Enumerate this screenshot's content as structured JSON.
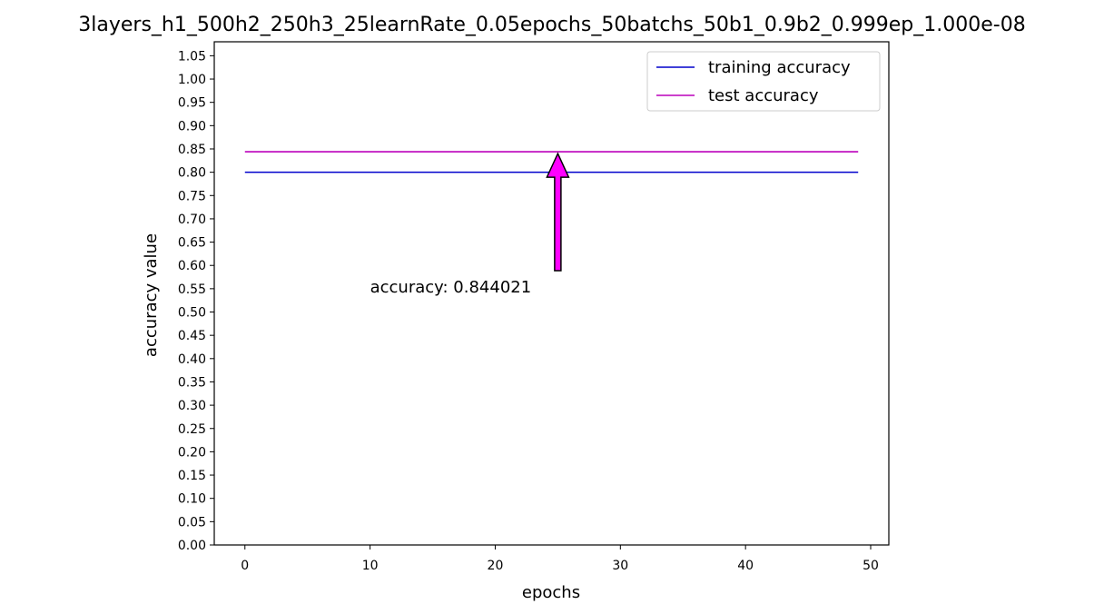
{
  "chart_data": {
    "type": "line",
    "title": "3layers_h1_500h2_250h3_25learnRate_0.05epochs_50batchs_50b1_0.9b2_0.999ep_1.000e-08",
    "xlabel": "epochs",
    "ylabel": "accuracy value",
    "xlim": [
      -2.45,
      51.45
    ],
    "ylim": [
      0,
      1.08
    ],
    "xticks": [
      0,
      10,
      20,
      30,
      40,
      50
    ],
    "xtick_labels": [
      "0",
      "10",
      "20",
      "30",
      "40",
      "50"
    ],
    "yticks": [
      0,
      0.05,
      0.1,
      0.15,
      0.2,
      0.25,
      0.3,
      0.35,
      0.4,
      0.45,
      0.5,
      0.55,
      0.6,
      0.65,
      0.7,
      0.75,
      0.8,
      0.85,
      0.9,
      0.95,
      1.0,
      1.05
    ],
    "ytick_labels": [
      "0.00",
      "0.05",
      "0.10",
      "0.15",
      "0.20",
      "0.25",
      "0.30",
      "0.35",
      "0.40",
      "0.45",
      "0.50",
      "0.55",
      "0.60",
      "0.65",
      "0.70",
      "0.75",
      "0.80",
      "0.85",
      "0.90",
      "0.95",
      "1.00",
      "1.05"
    ],
    "grid": false,
    "legend_position": "upper right",
    "series": [
      {
        "name": "training accuracy",
        "color": "#0000cc",
        "x": [
          0,
          1,
          2,
          3,
          4,
          5,
          6,
          7,
          8,
          9,
          10,
          11,
          12,
          13,
          14,
          15,
          16,
          17,
          18,
          19,
          20,
          21,
          22,
          23,
          24,
          25,
          26,
          27,
          28,
          29,
          30,
          31,
          32,
          33,
          34,
          35,
          36,
          37,
          38,
          39,
          40,
          41,
          42,
          43,
          44,
          45,
          46,
          47,
          48,
          49
        ],
        "y": [
          0.8,
          0.8,
          0.8,
          0.8,
          0.8,
          0.8,
          0.8,
          0.8,
          0.8,
          0.8,
          0.8,
          0.8,
          0.8,
          0.8,
          0.8,
          0.8,
          0.8,
          0.8,
          0.8,
          0.8,
          0.8,
          0.8,
          0.8,
          0.8,
          0.8,
          0.8,
          0.8,
          0.8,
          0.8,
          0.8,
          0.8,
          0.8,
          0.8,
          0.8,
          0.8,
          0.8,
          0.8,
          0.8,
          0.8,
          0.8,
          0.8,
          0.8,
          0.8,
          0.8,
          0.8,
          0.8,
          0.8,
          0.8,
          0.8,
          0.8
        ]
      },
      {
        "name": "test accuracy",
        "color": "#bb00bb",
        "x": [
          0,
          1,
          2,
          3,
          4,
          5,
          6,
          7,
          8,
          9,
          10,
          11,
          12,
          13,
          14,
          15,
          16,
          17,
          18,
          19,
          20,
          21,
          22,
          23,
          24,
          25,
          26,
          27,
          28,
          29,
          30,
          31,
          32,
          33,
          34,
          35,
          36,
          37,
          38,
          39,
          40,
          41,
          42,
          43,
          44,
          45,
          46,
          47,
          48,
          49
        ],
        "y": [
          0.844021,
          0.844021,
          0.844021,
          0.844021,
          0.844021,
          0.844021,
          0.844021,
          0.844021,
          0.844021,
          0.844021,
          0.844021,
          0.844021,
          0.844021,
          0.844021,
          0.844021,
          0.844021,
          0.844021,
          0.844021,
          0.844021,
          0.844021,
          0.844021,
          0.844021,
          0.844021,
          0.844021,
          0.844021,
          0.844021,
          0.844021,
          0.844021,
          0.844021,
          0.844021,
          0.844021,
          0.844021,
          0.844021,
          0.844021,
          0.844021,
          0.844021,
          0.844021,
          0.844021,
          0.844021,
          0.844021,
          0.844021,
          0.844021,
          0.844021,
          0.844021,
          0.844021,
          0.844021,
          0.844021,
          0.844021,
          0.844021,
          0.844021
        ]
      }
    ],
    "annotations": [
      {
        "text": "accuracy: 0.844021",
        "text_x": 10,
        "text_y": 0.55,
        "arrow_tip_x": 25,
        "arrow_tip_y": 0.84,
        "arrow_color": "#ff00ff"
      }
    ]
  }
}
